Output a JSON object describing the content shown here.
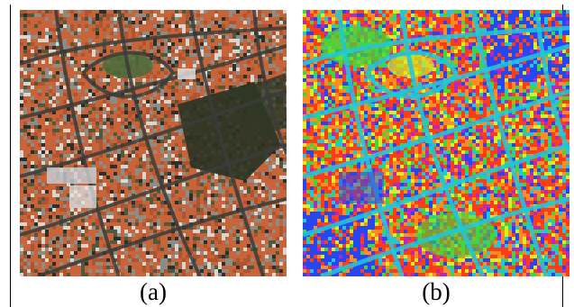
{
  "panels": [
    {
      "caption": "(a)",
      "kind": "aerial-photo-rgb"
    },
    {
      "caption": "(b)",
      "kind": "false-color-map"
    }
  ],
  "colors": {
    "roof_orange": "#c8643a",
    "roof_grey": "#8d8d88",
    "street_dark": "#3a3c3a",
    "vegetation_dark": "#2b3324",
    "map_red": "#ff3c14",
    "map_orange": "#ff8c1e",
    "map_yellow": "#d8f01e",
    "map_green": "#3cd83c",
    "map_cyan": "#1ec8dc",
    "map_blue": "#2846f0",
    "map_magenta": "#b428c8"
  }
}
